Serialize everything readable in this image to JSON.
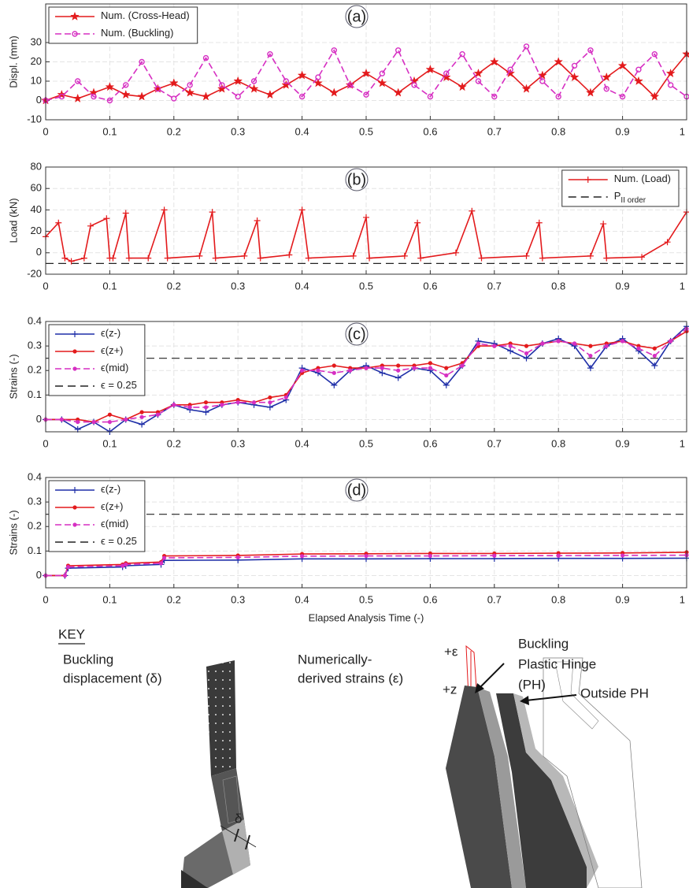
{
  "chart_data": [
    {
      "type": "line",
      "label": "(a)",
      "ylabel": "Displ. (mm)",
      "x": [
        0,
        0.025,
        0.05,
        0.075,
        0.1,
        0.125,
        0.15,
        0.175,
        0.2,
        0.225,
        0.25,
        0.275,
        0.3,
        0.325,
        0.35,
        0.375,
        0.4,
        0.425,
        0.45,
        0.475,
        0.5,
        0.525,
        0.55,
        0.575,
        0.6,
        0.625,
        0.65,
        0.675,
        0.7,
        0.725,
        0.75,
        0.775,
        0.8,
        0.825,
        0.85,
        0.875,
        0.9,
        0.925,
        0.95,
        0.975,
        1
      ],
      "series": [
        {
          "name": "Num. (Cross-Head)",
          "color": "#e31a1c",
          "marker": "star",
          "dash": false,
          "values": [
            0,
            3,
            1,
            4,
            7,
            3,
            2,
            6,
            9,
            4,
            2,
            6,
            10,
            6,
            3,
            8,
            13,
            9,
            4,
            8,
            14,
            9,
            4,
            10,
            16,
            12,
            7,
            14,
            20,
            14,
            6,
            13,
            20,
            12,
            4,
            12,
            18,
            10,
            2,
            14,
            24
          ]
        },
        {
          "name": "Num. (Buckling)",
          "color": "#d62fc2",
          "marker": "circle",
          "dash": true,
          "values": [
            0,
            2,
            10,
            2,
            0,
            8,
            20,
            6,
            1,
            8,
            22,
            8,
            2,
            10,
            24,
            10,
            2,
            12,
            26,
            8,
            3,
            14,
            26,
            8,
            2,
            14,
            24,
            10,
            2,
            16,
            28,
            10,
            2,
            18,
            26,
            6,
            2,
            16,
            24,
            8,
            2
          ]
        }
      ],
      "xlim": [
        0,
        1
      ],
      "xticks": [
        0,
        0.1,
        0.2,
        0.3,
        0.4,
        0.5,
        0.6,
        0.7,
        0.8,
        0.9,
        1
      ],
      "ylim": [
        -10,
        50
      ],
      "yticks": [
        -10,
        0,
        10,
        20,
        30
      ],
      "grid": true,
      "legend": "upper left"
    },
    {
      "type": "line",
      "label": "(b)",
      "ylabel": "Load (kN)",
      "x": [
        0,
        0.02,
        0.03,
        0.04,
        0.06,
        0.07,
        0.095,
        0.1,
        0.105,
        0.125,
        0.13,
        0.16,
        0.185,
        0.19,
        0.24,
        0.26,
        0.265,
        0.31,
        0.33,
        0.335,
        0.38,
        0.4,
        0.41,
        0.48,
        0.5,
        0.505,
        0.56,
        0.58,
        0.585,
        0.64,
        0.665,
        0.68,
        0.75,
        0.77,
        0.775,
        0.85,
        0.87,
        0.875,
        0.93,
        0.97,
        1
      ],
      "series": [
        {
          "name": "Num. (Load)",
          "color": "#e31a1c",
          "marker": "plus",
          "dash": false,
          "values": [
            15,
            28,
            -5,
            -8,
            -5,
            25,
            32,
            -5,
            -5,
            37,
            -5,
            -5,
            40,
            -5,
            -3,
            38,
            -5,
            -3,
            30,
            -5,
            -2,
            40,
            -5,
            -3,
            33,
            -5,
            -3,
            28,
            -5,
            0,
            39,
            -5,
            -3,
            28,
            -5,
            -3,
            27,
            -5,
            -4,
            10,
            38
          ]
        }
      ],
      "reference_lines": [
        {
          "name": "P",
          "subscript": "II order",
          "value": -10,
          "color": "#222222"
        }
      ],
      "xlim": [
        0,
        1
      ],
      "xticks": [
        0,
        0.1,
        0.2,
        0.3,
        0.4,
        0.5,
        0.6,
        0.7,
        0.8,
        0.9,
        1
      ],
      "ylim": [
        -20,
        80
      ],
      "yticks": [
        -20,
        0,
        20,
        40,
        60,
        80
      ],
      "grid": true,
      "legend": "upper right"
    },
    {
      "type": "line",
      "label": "(c)",
      "ylabel": "Strains (-)",
      "x": [
        0,
        0.025,
        0.05,
        0.075,
        0.1,
        0.125,
        0.15,
        0.175,
        0.2,
        0.225,
        0.25,
        0.275,
        0.3,
        0.325,
        0.35,
        0.375,
        0.4,
        0.425,
        0.45,
        0.475,
        0.5,
        0.525,
        0.55,
        0.575,
        0.6,
        0.625,
        0.65,
        0.675,
        0.7,
        0.725,
        0.75,
        0.775,
        0.8,
        0.825,
        0.85,
        0.875,
        0.9,
        0.925,
        0.95,
        0.975,
        1
      ],
      "series": [
        {
          "name": "ϵ(z-)",
          "color": "#1f2fa8",
          "marker": "plus",
          "dash": false,
          "values": [
            0,
            0,
            -0.04,
            -0.01,
            -0.05,
            0,
            -0.02,
            0.02,
            0.06,
            0.04,
            0.03,
            0.06,
            0.07,
            0.06,
            0.05,
            0.08,
            0.21,
            0.19,
            0.14,
            0.2,
            0.22,
            0.19,
            0.17,
            0.21,
            0.2,
            0.14,
            0.22,
            0.32,
            0.31,
            0.28,
            0.25,
            0.31,
            0.33,
            0.3,
            0.21,
            0.3,
            0.33,
            0.28,
            0.22,
            0.32,
            0.38
          ]
        },
        {
          "name": "ϵ(z+)",
          "color": "#e31a1c",
          "marker": "dot",
          "dash": false,
          "values": [
            0,
            0,
            0,
            -0.01,
            0.02,
            0,
            0.03,
            0.03,
            0.06,
            0.06,
            0.07,
            0.07,
            0.08,
            0.07,
            0.09,
            0.1,
            0.19,
            0.21,
            0.22,
            0.21,
            0.21,
            0.22,
            0.22,
            0.22,
            0.23,
            0.21,
            0.23,
            0.3,
            0.3,
            0.31,
            0.3,
            0.31,
            0.32,
            0.31,
            0.3,
            0.31,
            0.32,
            0.3,
            0.29,
            0.32,
            0.36
          ]
        },
        {
          "name": "ϵ(mid)",
          "color": "#d62fc2",
          "marker": "dot",
          "dash": true,
          "values": [
            0,
            0,
            -0.01,
            -0.01,
            -0.01,
            0,
            0.01,
            0.02,
            0.06,
            0.05,
            0.05,
            0.06,
            0.07,
            0.07,
            0.07,
            0.09,
            0.2,
            0.2,
            0.19,
            0.2,
            0.21,
            0.21,
            0.2,
            0.21,
            0.21,
            0.18,
            0.22,
            0.31,
            0.3,
            0.3,
            0.27,
            0.31,
            0.32,
            0.31,
            0.26,
            0.3,
            0.32,
            0.29,
            0.26,
            0.32,
            0.37
          ]
        }
      ],
      "reference_lines": [
        {
          "name": "ϵ = 0.25",
          "value": 0.25,
          "color": "#222222"
        }
      ],
      "xlim": [
        0,
        1
      ],
      "xticks": [
        0,
        0.1,
        0.2,
        0.3,
        0.4,
        0.5,
        0.6,
        0.7,
        0.8,
        0.9,
        1
      ],
      "ylim": [
        -0.05,
        0.4
      ],
      "yticks": [
        0,
        0.1,
        0.2,
        0.3,
        0.4
      ],
      "grid": true,
      "legend": "upper left"
    },
    {
      "type": "line",
      "label": "(d)",
      "ylabel": "Strains (-)",
      "xlabel": "Elapsed Analysis Time (-)",
      "x": [
        0,
        0.03,
        0.035,
        0.12,
        0.125,
        0.18,
        0.185,
        0.3,
        0.4,
        0.5,
        0.6,
        0.7,
        0.8,
        0.9,
        1
      ],
      "series": [
        {
          "name": "ϵ(z-)",
          "color": "#1f2fa8",
          "marker": "plus",
          "dash": false,
          "values": [
            0,
            0,
            0.03,
            0.035,
            0.04,
            0.045,
            0.062,
            0.063,
            0.068,
            0.068,
            0.069,
            0.069,
            0.07,
            0.07,
            0.071
          ]
        },
        {
          "name": "ϵ(z+)",
          "color": "#e31a1c",
          "marker": "dot",
          "dash": false,
          "values": [
            0,
            0,
            0.04,
            0.045,
            0.05,
            0.055,
            0.08,
            0.082,
            0.088,
            0.089,
            0.09,
            0.09,
            0.091,
            0.092,
            0.095
          ]
        },
        {
          "name": "ϵ(mid)",
          "color": "#d62fc2",
          "marker": "dot",
          "dash": true,
          "values": [
            0,
            0,
            0.035,
            0.04,
            0.045,
            0.05,
            0.072,
            0.074,
            0.079,
            0.08,
            0.08,
            0.081,
            0.081,
            0.082,
            0.083
          ]
        }
      ],
      "reference_lines": [
        {
          "name": "ϵ = 0.25",
          "value": 0.25,
          "color": "#222222"
        }
      ],
      "xlim": [
        0,
        1
      ],
      "xticks": [
        0,
        0.1,
        0.2,
        0.3,
        0.4,
        0.5,
        0.6,
        0.7,
        0.8,
        0.9,
        1
      ],
      "ylim": [
        -0.05,
        0.4
      ],
      "yticks": [
        0,
        0.1,
        0.2,
        0.3,
        0.4
      ],
      "grid": true,
      "legend": "upper left"
    }
  ],
  "key": {
    "title": "KEY",
    "left_caption": [
      "Buckling",
      "displacement (δ)"
    ],
    "delta": "δ",
    "right_caption": [
      "Numerically-",
      "derived strains (ε)"
    ],
    "plus_eps": "+ε",
    "plus_z": "+z",
    "ph_label": [
      "Buckling",
      "Plastic Hinge",
      "(PH)"
    ],
    "outside_label": "Outside PH"
  }
}
